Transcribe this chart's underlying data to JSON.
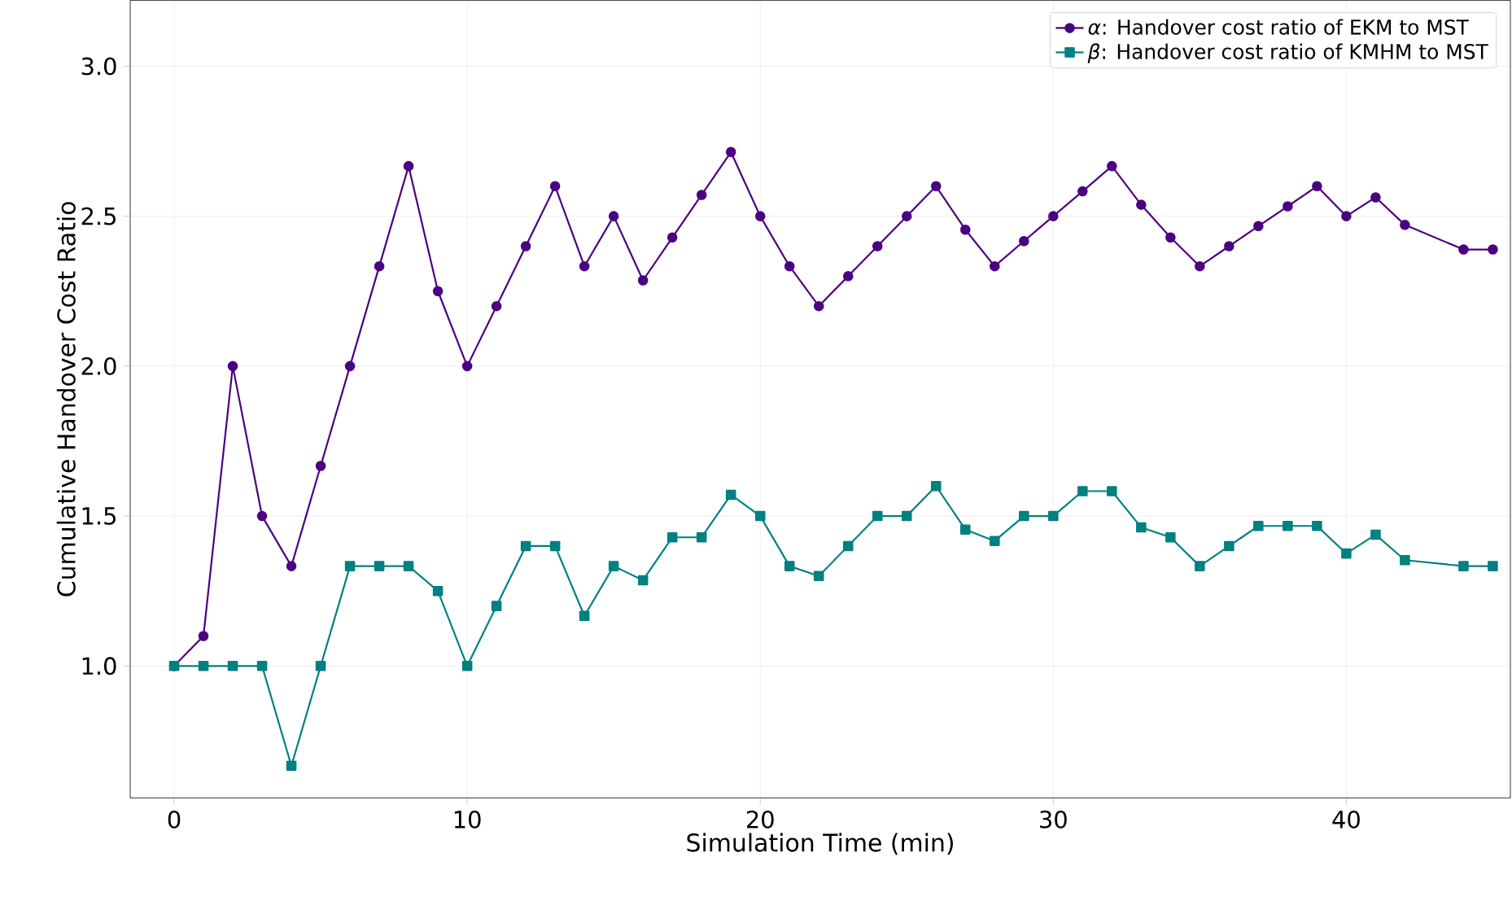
{
  "chart_data": {
    "type": "line",
    "xlabel": "Simulation Time (min)",
    "ylabel": "Cumulative Handover Cost Ratio",
    "xlim": [
      -1.5,
      45.6
    ],
    "ylim": [
      0.56,
      3.22
    ],
    "xticks": [
      0,
      10,
      20,
      30,
      40
    ],
    "yticks": [
      {
        "value": 1,
        "label": "1.0"
      },
      {
        "value": 1.5,
        "label": "1.5"
      },
      {
        "value": 2,
        "label": "2.0"
      },
      {
        "value": 2.5,
        "label": "2.5"
      },
      {
        "value": 3,
        "label": "3.0"
      }
    ],
    "grid": true,
    "legend": "top right",
    "line_style": "solid",
    "series": [
      {
        "name": "*α*: Handover cost ratio of EKM to MST",
        "color": "#4b0082",
        "marker": "circle",
        "x": [
          0,
          1,
          2,
          3,
          4,
          5,
          6,
          7,
          8,
          9,
          10,
          11,
          12,
          13,
          14,
          15,
          16,
          17,
          18,
          19,
          20,
          21,
          22,
          23,
          24,
          25,
          26,
          27,
          28,
          29,
          30,
          31,
          32,
          33,
          34,
          35,
          36,
          37,
          38,
          39,
          40,
          41,
          42,
          44,
          45
        ],
        "values": [
          1.0,
          1.1,
          2.0,
          1.5,
          1.333,
          1.667,
          2.0,
          2.333,
          2.667,
          2.25,
          2.0,
          2.2,
          2.4,
          2.6,
          2.333,
          2.5,
          2.286,
          2.429,
          2.571,
          2.714,
          2.5,
          2.333,
          2.2,
          2.3,
          2.4,
          2.5,
          2.6,
          2.455,
          2.333,
          2.417,
          2.5,
          2.583,
          2.667,
          2.538,
          2.429,
          2.333,
          2.4,
          2.467,
          2.533,
          2.6,
          2.5,
          2.563,
          2.471,
          2.389,
          2.389
        ]
      },
      {
        "name": "*β*: Handover cost ratio of KMHM to MST",
        "color": "#008080",
        "marker": "square",
        "x": [
          0,
          1,
          2,
          3,
          4,
          5,
          6,
          7,
          8,
          9,
          10,
          11,
          12,
          13,
          14,
          15,
          16,
          17,
          18,
          19,
          20,
          21,
          22,
          23,
          24,
          25,
          26,
          27,
          28,
          29,
          30,
          31,
          32,
          33,
          34,
          35,
          36,
          37,
          38,
          39,
          40,
          41,
          42,
          44,
          45
        ],
        "values": [
          1.0,
          1.0,
          1.0,
          1.0,
          0.667,
          1.0,
          1.333,
          1.333,
          1.333,
          1.25,
          1.0,
          1.2,
          1.4,
          1.4,
          1.167,
          1.333,
          1.286,
          1.429,
          1.429,
          1.571,
          1.5,
          1.333,
          1.3,
          1.4,
          1.5,
          1.5,
          1.6,
          1.455,
          1.417,
          1.5,
          1.5,
          1.583,
          1.583,
          1.462,
          1.429,
          1.333,
          1.4,
          1.467,
          1.467,
          1.467,
          1.375,
          1.438,
          1.353,
          1.333,
          1.333
        ]
      }
    ]
  }
}
